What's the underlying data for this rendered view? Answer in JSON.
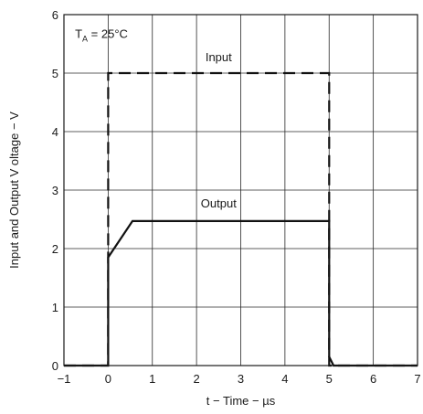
{
  "chart_data": {
    "type": "line",
    "xlabel": "t − Time − µs",
    "ylabel": "Input and Output V oltage − V",
    "xlim": [
      -1,
      7
    ],
    "ylim": [
      0,
      6
    ],
    "xticks": [
      -1,
      0,
      1,
      2,
      3,
      4,
      5,
      6,
      7
    ],
    "yticks": [
      0,
      1,
      2,
      3,
      4,
      5,
      6
    ],
    "grid": true,
    "annotation": {
      "base": "T",
      "sub": "A",
      "rest": " = 25°C"
    },
    "series": [
      {
        "name": "Input",
        "style": "dashed",
        "x": [
          -1,
          0,
          0,
          5,
          5,
          7
        ],
        "y": [
          0,
          0,
          5,
          5,
          0,
          0
        ]
      },
      {
        "name": "Output",
        "style": "solid",
        "x": [
          -1,
          0,
          0,
          0.55,
          5,
          5,
          5.1,
          7
        ],
        "y": [
          0,
          0,
          1.85,
          2.47,
          2.47,
          0.15,
          0,
          0
        ]
      }
    ],
    "series_label_pos": [
      {
        "x": 2.5,
        "y": 5.2
      },
      {
        "x": 2.5,
        "y": 2.7
      }
    ],
    "annotation_pos": {
      "x": -0.75,
      "y": 5.6
    }
  }
}
